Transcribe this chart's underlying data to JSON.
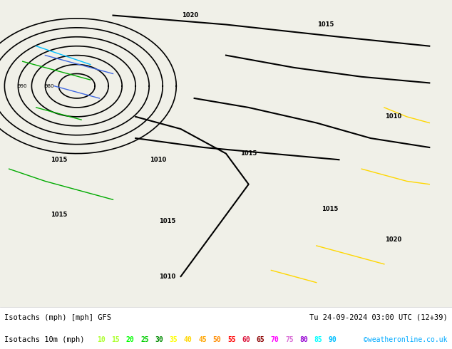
{
  "title_left": "Isotachs (mph) [mph] GFS",
  "title_right": "Tu 24-09-2024 03:00 UTC (12+39)",
  "legend_label": "Isotachs 10m (mph)",
  "legend_values": [
    10,
    15,
    20,
    25,
    30,
    35,
    40,
    45,
    50,
    55,
    60,
    65,
    70,
    75,
    80,
    85,
    90
  ],
  "legend_colors": [
    "#adff2f",
    "#adff2f",
    "#00ff00",
    "#00cd00",
    "#008b00",
    "#ffff00",
    "#ffd700",
    "#ffa500",
    "#ff8c00",
    "#ff0000",
    "#dc143c",
    "#8b0000",
    "#ff00ff",
    "#da70d6",
    "#9400d3",
    "#00ffff",
    "#00bfff"
  ],
  "watermark": "©weatheronline.co.uk",
  "bg_color": "#e8f5e9",
  "map_bg": "#d4edda",
  "footer_bg": "#ffffff",
  "fig_width": 6.34,
  "fig_height": 4.9,
  "dpi": 100
}
